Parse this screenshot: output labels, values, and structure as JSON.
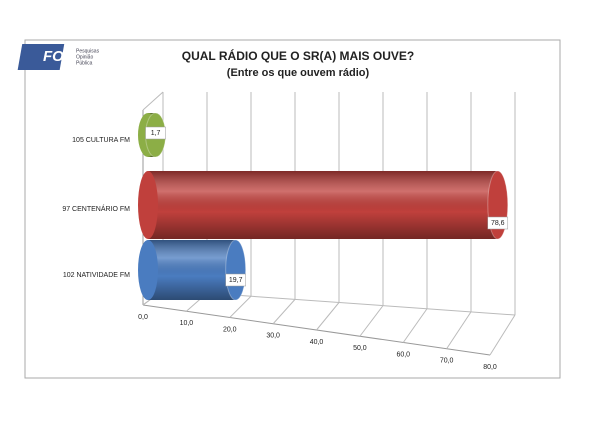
{
  "chart_data": {
    "type": "bar",
    "orientation": "horizontal",
    "title": "QUAL RÁDIO QUE O SR(A) MAIS OUVE?",
    "subtitle": "(Entre os que ouvem rádio)",
    "logo": "FOP",
    "logo_lines": [
      "Pesquisas",
      "Opinião",
      "Pública"
    ],
    "categories": [
      "105 CULTURA FM",
      "97 CENTENÁRIO FM",
      "102 NATIVIDADE FM"
    ],
    "values": [
      1.7,
      78.6,
      19.7
    ],
    "value_labels": [
      "1,7",
      "78,6",
      "19,7"
    ],
    "colors": [
      "#8cae46",
      "#c0403c",
      "#4a7cc0"
    ],
    "xlim": [
      0,
      80
    ],
    "xticks": [
      {
        "value": 0,
        "label": "0,0"
      },
      {
        "value": 10,
        "label": "10,0"
      },
      {
        "value": 20,
        "label": "20,0"
      },
      {
        "value": 30,
        "label": "30,0"
      },
      {
        "value": 40,
        "label": "40,0"
      },
      {
        "value": 50,
        "label": "50,0"
      },
      {
        "value": 60,
        "label": "60,0"
      },
      {
        "value": 70,
        "label": "70,0"
      },
      {
        "value": 80,
        "label": "80,0"
      }
    ],
    "grid": true
  }
}
